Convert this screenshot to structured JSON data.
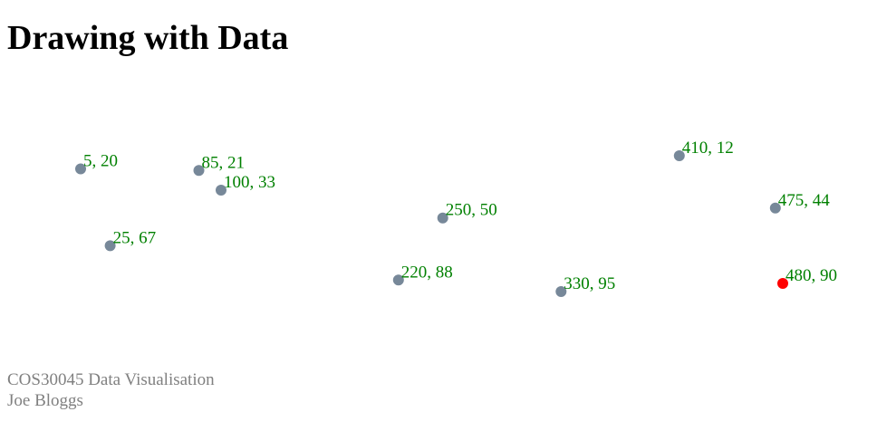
{
  "page": {
    "title": "Drawing with Data"
  },
  "footer": {
    "course": "COS30045 Data Visualisation",
    "author": "Joe Bloggs"
  },
  "colors": {
    "point": "#778899",
    "highlight": "#ff0000",
    "label": "#008000",
    "footer": "#808080"
  },
  "chart_data": {
    "type": "scatter",
    "title": "",
    "xlabel": "",
    "ylabel": "",
    "grid": false,
    "points": [
      {
        "x": 5,
        "y": 20,
        "label": "5, 20",
        "highlight": false
      },
      {
        "x": 480,
        "y": 90,
        "label": "480, 90",
        "highlight": true
      },
      {
        "x": 250,
        "y": 50,
        "label": "250, 50",
        "highlight": false
      },
      {
        "x": 100,
        "y": 33,
        "label": "100, 33",
        "highlight": false
      },
      {
        "x": 330,
        "y": 95,
        "label": "330, 95",
        "highlight": false
      },
      {
        "x": 410,
        "y": 12,
        "label": "410, 12",
        "highlight": false
      },
      {
        "x": 475,
        "y": 44,
        "label": "475, 44",
        "highlight": false
      },
      {
        "x": 25,
        "y": 67,
        "label": "25, 67",
        "highlight": false
      },
      {
        "x": 85,
        "y": 21,
        "label": "85, 21",
        "highlight": false
      },
      {
        "x": 220,
        "y": 88,
        "label": "220, 88",
        "highlight": false
      }
    ]
  }
}
